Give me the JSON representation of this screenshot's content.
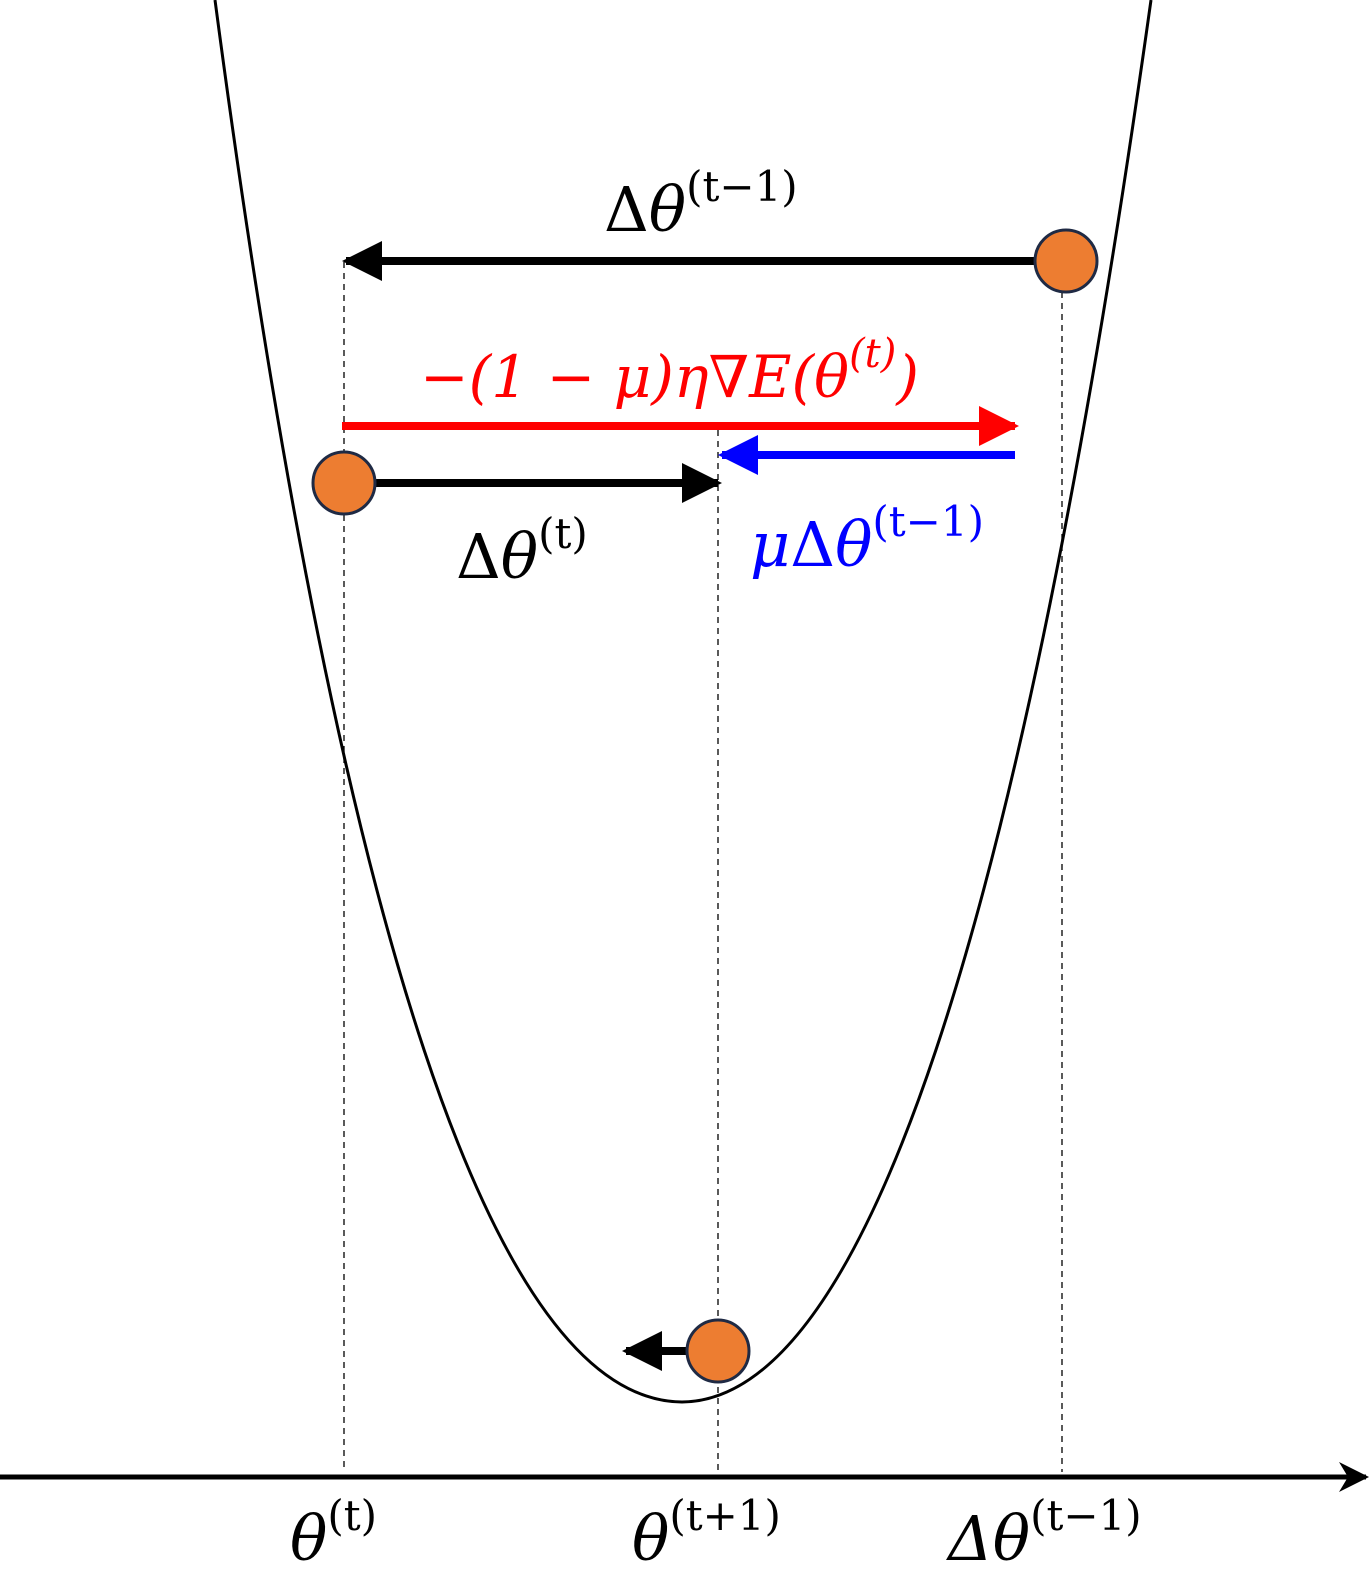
{
  "colors": {
    "curve": "#000000",
    "ball_fill": "#ED7D31",
    "ball_stroke": "#1F2A44",
    "previous_step": "#000000",
    "gradient_term": "#FF0000",
    "momentum_term": "#0000FF",
    "current_step": "#000000",
    "guide_lines": "#000000",
    "axis": "#000000"
  },
  "icons": {
    "ball": "filled-circle",
    "step_arrow": "arrow-head"
  },
  "labels": {
    "previous_step": {
      "delta": "Δ",
      "theta": "θ",
      "sup": "(t−1)"
    },
    "gradient_term": {
      "text": "−(1 − μ)η∇E(θ",
      "sup": "(t)",
      "close": ")"
    },
    "current_step": {
      "delta": "Δ",
      "theta": "θ",
      "sup": "(t)"
    },
    "momentum_term": {
      "mu": "μ",
      "delta": "Δ",
      "theta": "θ",
      "sup": "(t−1)"
    }
  },
  "axis_labels": {
    "theta_t": {
      "base": "θ",
      "sup": "(t)"
    },
    "theta_t1": {
      "base": "θ",
      "sup": "(t+1)"
    },
    "delta_theta_t_minus_1": {
      "base": "Δθ",
      "sup": "(t−1)"
    }
  }
}
